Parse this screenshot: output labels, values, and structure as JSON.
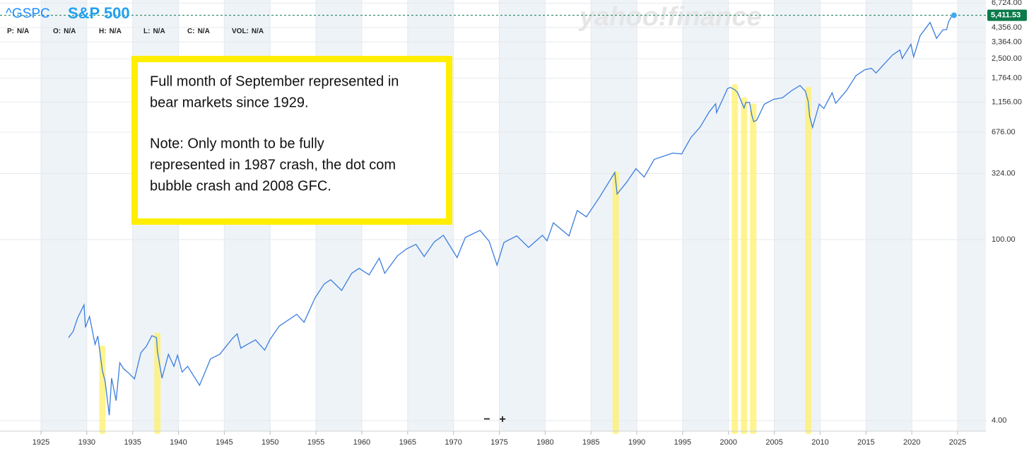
{
  "chart_data": {
    "type": "line",
    "symbol": "^GSPC",
    "watermark": "yahoo!finance",
    "quote": [
      {
        "label": "P:",
        "value": "N/A"
      },
      {
        "label": "O:",
        "value": "N/A"
      },
      {
        "label": "H:",
        "value": "N/A"
      },
      {
        "label": "L:",
        "value": "N/A"
      },
      {
        "label": "C:",
        "value": "N/A"
      },
      {
        "label": "VOL:",
        "value": "N/A"
      }
    ],
    "annotation": [
      [
        "Full month of September represented in",
        "bear markets since 1929."
      ],
      [
        "Note: Only month to be fully",
        "represented in 1987 crash, the dot com",
        "bubble crash and 2008 GFC."
      ]
    ],
    "zoom": [
      "−",
      "+"
    ],
    "x": [
      1928.0,
      1928.5,
      1929.0,
      1929.7,
      1929.85,
      1930.3,
      1930.9,
      1931.2,
      1931.7,
      1932.0,
      1932.45,
      1932.7,
      1933.2,
      1933.6,
      1934.0,
      1934.5,
      1935.2,
      1935.9,
      1936.5,
      1937.1,
      1937.6,
      1937.7,
      1938.2,
      1938.9,
      1939.5,
      1939.9,
      1940.4,
      1941.0,
      1942.3,
      1943.5,
      1944.5,
      1945.9,
      1946.4,
      1946.8,
      1947.5,
      1948.4,
      1949.4,
      1950.0,
      1951.0,
      1952.9,
      1953.7,
      1954.9,
      1955.9,
      1956.6,
      1957.8,
      1958.9,
      1959.7,
      1960.8,
      1961.9,
      1962.5,
      1963.9,
      1964.9,
      1965.9,
      1966.8,
      1967.9,
      1968.9,
      1970.4,
      1971.3,
      1972.9,
      1973.9,
      1974.75,
      1975.5,
      1976.9,
      1978.2,
      1979.7,
      1980.2,
      1980.9,
      1982.6,
      1983.5,
      1984.5,
      1985.9,
      1987.6,
      1987.85,
      1988.9,
      1989.9,
      1990.8,
      1991.9,
      1993.9,
      1994.9,
      1995.9,
      1996.9,
      1997.9,
      1998.6,
      1998.7,
      1999.9,
      2000.2,
      2000.7,
      2001.0,
      2001.7,
      2001.9,
      2002.3,
      2002.55,
      2002.75,
      2003.1,
      2003.9,
      2004.9,
      2005.9,
      2006.9,
      2007.8,
      2008.4,
      2008.7,
      2008.85,
      2009.17,
      2009.9,
      2010.4,
      2011.3,
      2011.7,
      2012.9,
      2013.9,
      2014.9,
      2015.6,
      2016.1,
      2016.9,
      2017.9,
      2018.7,
      2018.95,
      2019.9,
      2020.2,
      2020.9,
      2021.99,
      2022.7,
      2023.4,
      2023.8,
      2023.99,
      2024.3,
      2024.6
    ],
    "series": [
      {
        "name": "S&P 500",
        "color": "#3b7ddd",
        "values": [
          17.5,
          19.5,
          24.9,
          31.3,
          21,
          25.5,
          15.5,
          18,
          9.7,
          8,
          4.4,
          8.5,
          5.7,
          11.2,
          10.1,
          9.4,
          8.4,
          13.4,
          15,
          18.1,
          17.5,
          13.8,
          8.5,
          13,
          10.5,
          12.8,
          9.5,
          10.5,
          7.5,
          12,
          13,
          17.3,
          18.7,
          14.5,
          15.5,
          16.8,
          14,
          17,
          21.5,
          26.5,
          23,
          35.5,
          45.5,
          49,
          40.5,
          55,
          60,
          53.5,
          72,
          55,
          75,
          85,
          92,
          74,
          96,
          108,
          72.7,
          104,
          118,
          97,
          63.5,
          95,
          107,
          87,
          108,
          98,
          135,
          107,
          168,
          150,
          211,
          330,
          225,
          278,
          353,
          305,
          417,
          466,
          459,
          615,
          740,
          970,
          1120,
          957,
          1469,
          1499,
          1436,
          1366,
          1040,
          1148,
          1147,
          911,
          815,
          841,
          1111,
          1212,
          1248,
          1418,
          1549,
          1400,
          1166,
          896,
          735,
          1115,
          1030,
          1363,
          1131,
          1426,
          1848,
          2059,
          2104,
          1940,
          2239,
          2674,
          2914,
          2507,
          3231,
          2585,
          3756,
          4766,
          3586,
          4180,
          4194,
          4770,
          5255,
          5411.53
        ]
      }
    ],
    "price_line": {
      "value": 5411.53,
      "label": "5,411.53",
      "color": "#0b7a4b"
    },
    "highlights": {
      "color": "#fff06a",
      "x": [
        1931.7,
        1937.7,
        1987.7,
        2000.7,
        2001.7,
        2002.7,
        2008.7
      ]
    },
    "xlim": [
      1920.53,
      2028.08
    ],
    "xticks": [
      1925,
      1930,
      1935,
      1940,
      1945,
      1950,
      1955,
      1960,
      1965,
      1970,
      1975,
      1980,
      1985,
      1990,
      1995,
      2000,
      2005,
      2010,
      2015,
      2020,
      2025
    ],
    "ylim": [
      3.4,
      7100
    ],
    "log_scale": true,
    "yticks": [
      {
        "value": 4,
        "label": "4.00"
      },
      {
        "value": 100,
        "label": "100.00"
      },
      {
        "value": 324,
        "label": "324.00"
      },
      {
        "value": 676,
        "label": "676.00"
      },
      {
        "value": 1156,
        "label": "1,156.00"
      },
      {
        "value": 1764,
        "label": "1,764.00"
      },
      {
        "value": 2500,
        "label": "2,500.00"
      },
      {
        "value": 3364,
        "label": "3,364.00"
      },
      {
        "value": 4356,
        "label": "4,356.00"
      },
      {
        "value": 6724,
        "label": "6,724.00"
      }
    ],
    "grid": true
  }
}
